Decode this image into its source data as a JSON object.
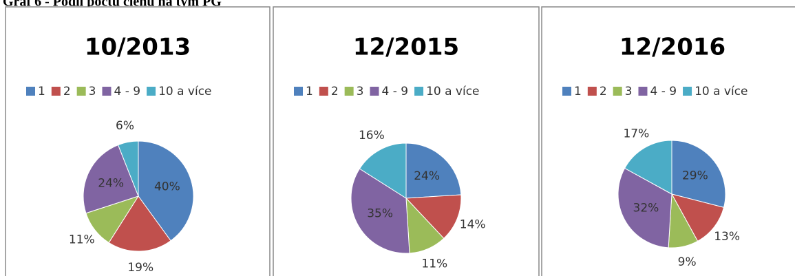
{
  "header": {
    "title": "Graf 6 - Podíl počtu členů na tým PG"
  },
  "chart_data": [
    {
      "type": "pie",
      "title": "10/2013",
      "categories": [
        "1",
        "2",
        "3",
        "4 - 9",
        "10 a více"
      ],
      "values": [
        40,
        19,
        11,
        24,
        6
      ],
      "value_labels": [
        "40%",
        "19%",
        "11%",
        "24%",
        "6%"
      ],
      "colors": [
        "#4f81bd",
        "#c0504d",
        "#9bbb59",
        "#8064a2",
        "#4bacc6"
      ]
    },
    {
      "type": "pie",
      "title": "12/2015",
      "categories": [
        "1",
        "2",
        "3",
        "4 - 9",
        "10 a více"
      ],
      "values": [
        24,
        14,
        11,
        35,
        16
      ],
      "value_labels": [
        "24%",
        "14%",
        "11%",
        "35%",
        "16%"
      ],
      "colors": [
        "#4f81bd",
        "#c0504d",
        "#9bbb59",
        "#8064a2",
        "#4bacc6"
      ]
    },
    {
      "type": "pie",
      "title": "12/2016",
      "categories": [
        "1",
        "2",
        "3",
        "4 - 9",
        "10 a více"
      ],
      "values": [
        29,
        13,
        9,
        32,
        17
      ],
      "value_labels": [
        "29%",
        "13%",
        "9%",
        "32%",
        "17%"
      ],
      "colors": [
        "#4f81bd",
        "#c0504d",
        "#9bbb59",
        "#8064a2",
        "#4bacc6"
      ]
    }
  ]
}
